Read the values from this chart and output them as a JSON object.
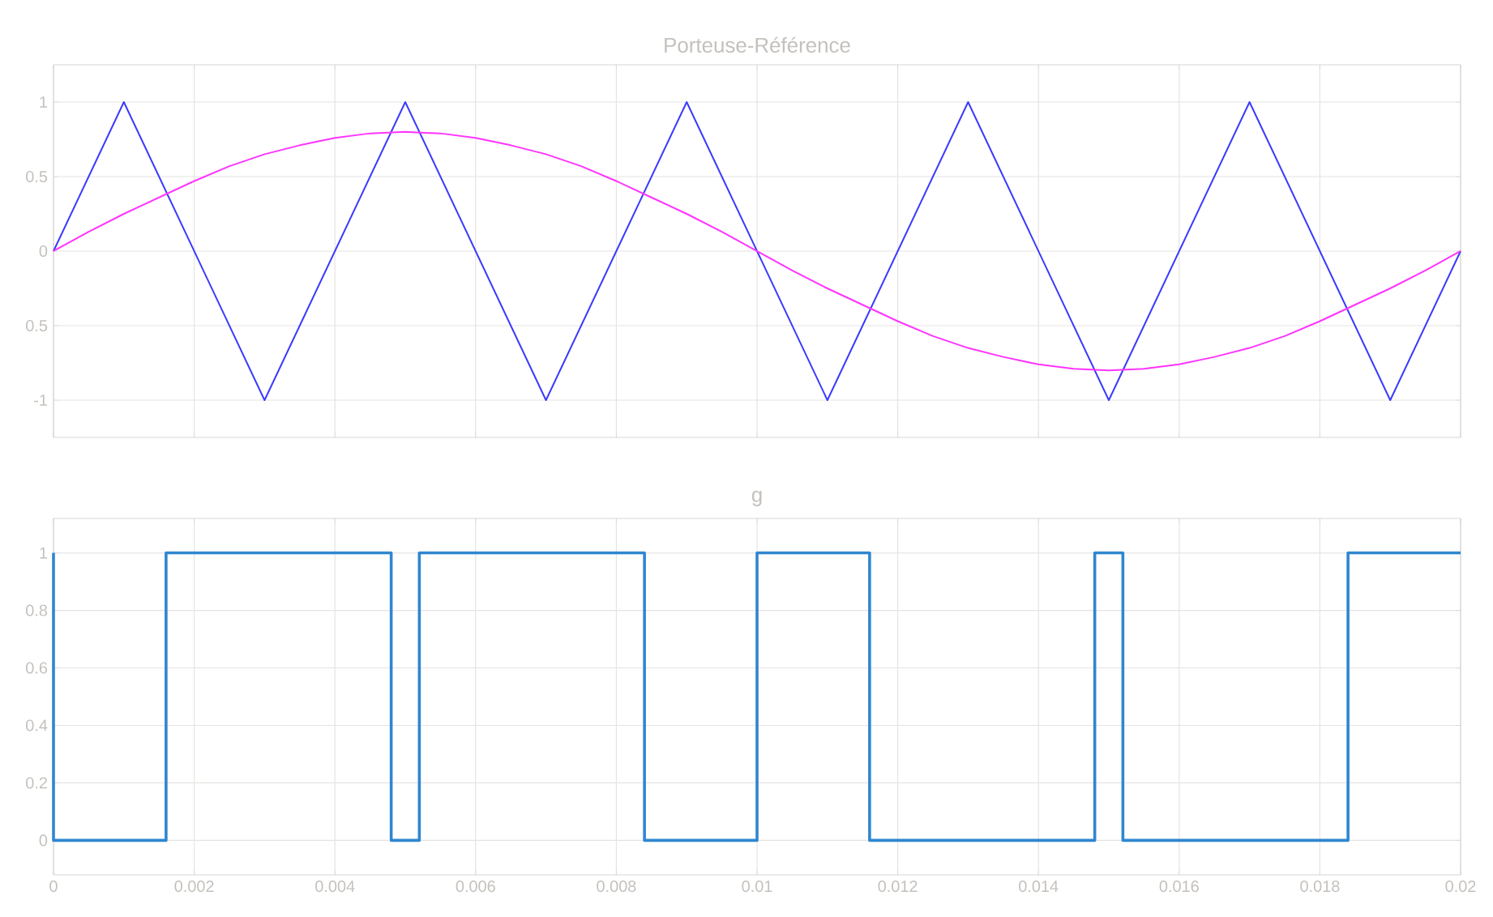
{
  "chart_data": [
    {
      "type": "line",
      "title": "Porteuse-Référence",
      "xlim": [
        0,
        0.02
      ],
      "ylim": [
        -1.25,
        1.25
      ],
      "xticks": [
        0,
        0.002,
        0.004,
        0.006,
        0.008,
        0.01,
        0.012,
        0.014,
        0.016,
        0.018,
        0.02
      ],
      "yticks": [
        -1,
        {
          "value": -0.5,
          "label": "0.5"
        },
        0,
        0.5,
        1
      ],
      "grid": true,
      "tick_labels": "y",
      "line_style": "solid",
      "marker": "none",
      "series": [
        {
          "color": "#3a3aff",
          "x": [
            0,
            0.001,
            0.003,
            0.005,
            0.007,
            0.009,
            0.011,
            0.013,
            0.015,
            0.017,
            0.019,
            0.02
          ],
          "values": [
            0,
            1,
            -1,
            1,
            -1,
            1,
            -1,
            1,
            -1,
            1,
            -1,
            0
          ]
        },
        {
          "color": "#ff33ff",
          "x": [
            0,
            0.0005,
            0.001,
            0.0015,
            0.002,
            0.0025,
            0.003,
            0.0035,
            0.004,
            0.0045,
            0.005,
            0.0055,
            0.006,
            0.0065,
            0.007,
            0.0075,
            0.008,
            0.0085,
            0.009,
            0.0095,
            0.01,
            0.0105,
            0.011,
            0.0115,
            0.012,
            0.0125,
            0.013,
            0.0135,
            0.014,
            0.0145,
            0.015,
            0.0155,
            0.016,
            0.0165,
            0.017,
            0.0175,
            0.018,
            0.0185,
            0.019,
            0.0195,
            0.02
          ],
          "values": [
            0,
            0.13,
            0.25,
            0.36,
            0.47,
            0.57,
            0.65,
            0.71,
            0.76,
            0.79,
            0.8,
            0.79,
            0.76,
            0.71,
            0.65,
            0.57,
            0.47,
            0.36,
            0.25,
            0.13,
            0,
            -0.13,
            -0.25,
            -0.36,
            -0.47,
            -0.57,
            -0.65,
            -0.71,
            -0.76,
            -0.79,
            -0.8,
            -0.79,
            -0.76,
            -0.71,
            -0.65,
            -0.57,
            -0.47,
            -0.36,
            -0.25,
            -0.13,
            0
          ]
        }
      ]
    },
    {
      "type": "step",
      "title": "g",
      "xlim": [
        0,
        0.02
      ],
      "ylim": [
        -0.12,
        1.12
      ],
      "xticks": [
        0,
        0.002,
        0.004,
        0.006,
        0.008,
        0.01,
        0.012,
        0.014,
        0.016,
        0.018,
        0.02
      ],
      "yticks": [
        0,
        0.2,
        0.4,
        0.6,
        0.8,
        1
      ],
      "grid": true,
      "line_style": "solid",
      "marker": "none",
      "series": [
        {
          "color": "#2f86d0",
          "x": [
            0,
            0,
            0.0016,
            0.0048,
            0.0052,
            0.0084,
            0.01,
            0.0116,
            0.0148,
            0.0152,
            0.0184,
            0.02
          ],
          "values": [
            1,
            0,
            1,
            0,
            1,
            0,
            1,
            0,
            1,
            0,
            1,
            1
          ]
        }
      ]
    }
  ]
}
